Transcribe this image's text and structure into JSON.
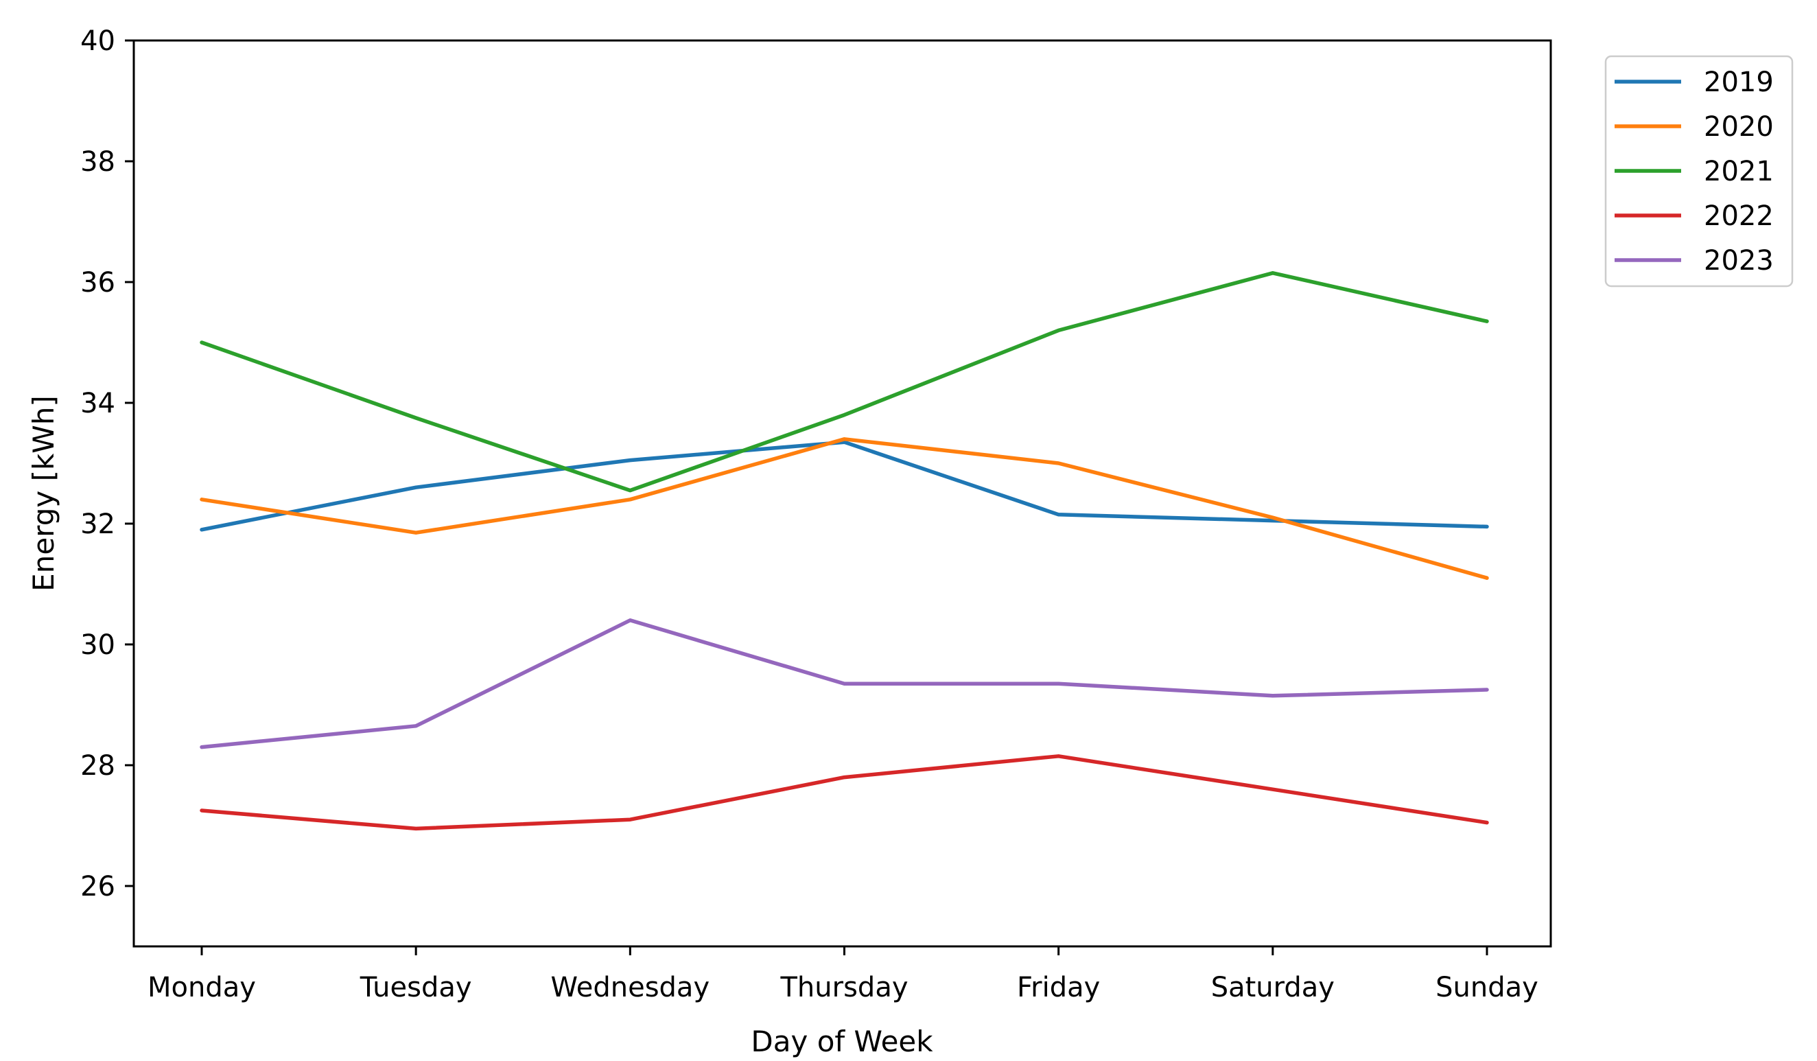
{
  "figure": {
    "background": "#ffffff"
  },
  "chart_data": {
    "type": "line",
    "title": "",
    "xlabel": "Day of Week",
    "ylabel": "Energy [kWh]",
    "categories": [
      "Monday",
      "Tuesday",
      "Wednesday",
      "Thursday",
      "Friday",
      "Saturday",
      "Sunday"
    ],
    "yticks": [
      26,
      28,
      30,
      32,
      34,
      36,
      38,
      40
    ],
    "ylim": [
      25,
      40
    ],
    "xlim": [
      -0.3,
      6.3
    ],
    "grid": false,
    "axis_color": "#000000",
    "series": [
      {
        "name": "2019",
        "color": "#1f77b4",
        "values": [
          31.9,
          32.6,
          33.05,
          33.35,
          32.15,
          32.05,
          31.95
        ]
      },
      {
        "name": "2020",
        "color": "#ff7f0e",
        "values": [
          32.4,
          31.85,
          32.4,
          33.4,
          33.0,
          32.1,
          31.1
        ]
      },
      {
        "name": "2021",
        "color": "#2ca02c",
        "values": [
          35.0,
          33.75,
          32.55,
          33.8,
          35.2,
          36.15,
          35.35
        ]
      },
      {
        "name": "2022",
        "color": "#d62728",
        "values": [
          27.25,
          26.95,
          27.1,
          27.8,
          28.15,
          27.6,
          27.05
        ]
      },
      {
        "name": "2023",
        "color": "#9467bd",
        "values": [
          28.3,
          28.65,
          30.4,
          29.35,
          29.35,
          29.15,
          29.25
        ]
      }
    ],
    "legend": {
      "position": "upper-right-outside",
      "entries": [
        "2019",
        "2020",
        "2021",
        "2022",
        "2023"
      ],
      "border_color": "#cccccc",
      "background": "#ffffff"
    }
  }
}
